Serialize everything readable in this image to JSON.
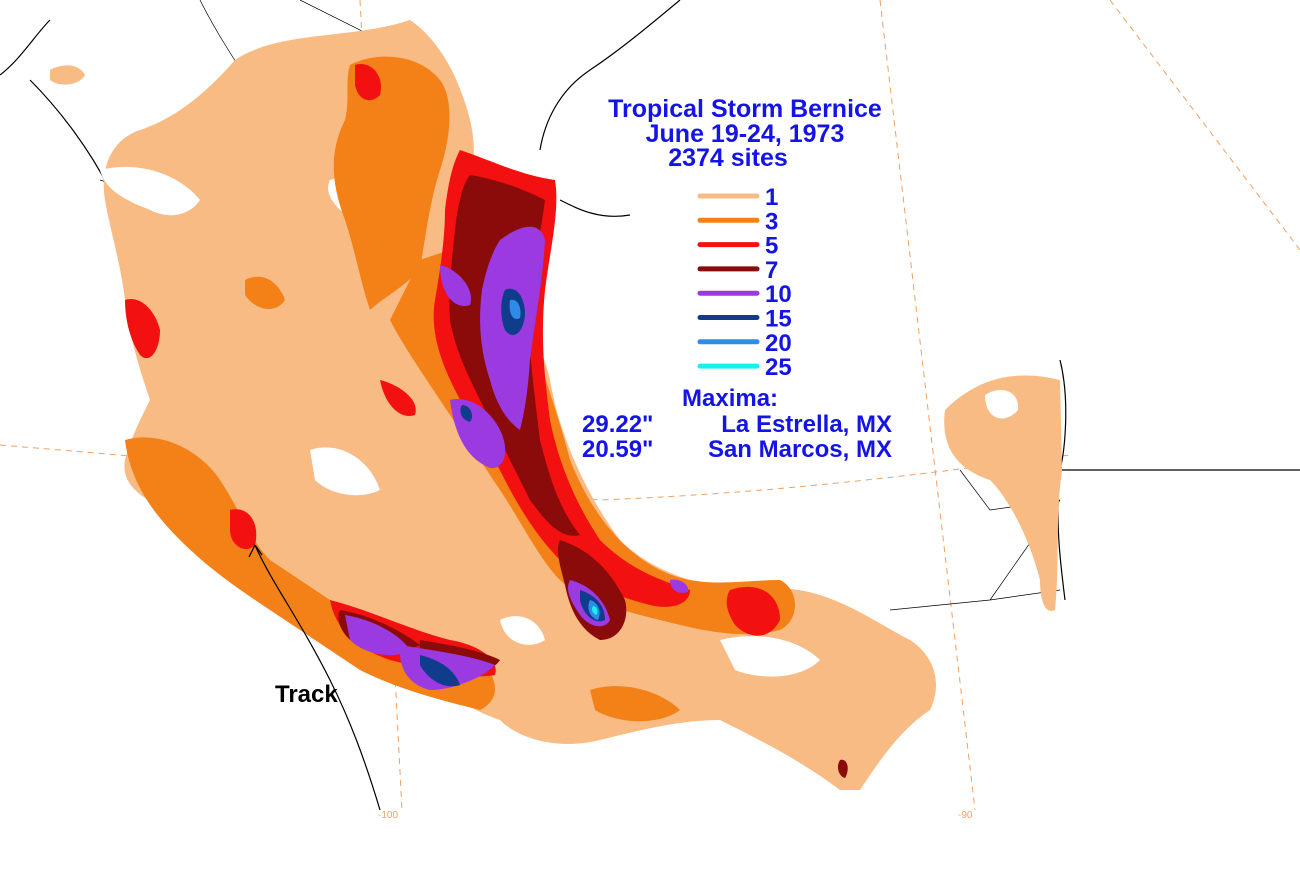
{
  "title": {
    "line1": "Tropical Storm Bernice",
    "line2": "June 19-24, 1973",
    "line3": "2374 sites"
  },
  "legend": {
    "items": [
      {
        "label": "1",
        "color": "#f9bb84"
      },
      {
        "label": "3",
        "color": "#f48018"
      },
      {
        "label": "5",
        "color": "#f21010"
      },
      {
        "label": "7",
        "color": "#8b0a0a"
      },
      {
        "label": "10",
        "color": "#9a3ae0"
      },
      {
        "label": "15",
        "color": "#103c8c"
      },
      {
        "label": "20",
        "color": "#2e8be6"
      },
      {
        "label": "25",
        "color": "#18f0f0"
      }
    ]
  },
  "maxima": {
    "heading": "Maxima:",
    "rows": [
      {
        "value": "29.22\"",
        "location": "La Estrella, MX"
      },
      {
        "value": "20.59\"",
        "location": "San Marcos, MX"
      }
    ]
  },
  "track": {
    "label": "Track"
  },
  "graticule": {
    "left_tick": "-100",
    "right_tick": "-90"
  },
  "colors": {
    "background": "#ffffff",
    "coast": "#000000",
    "graticule": "#f0a060",
    "text": "#1414e6"
  }
}
